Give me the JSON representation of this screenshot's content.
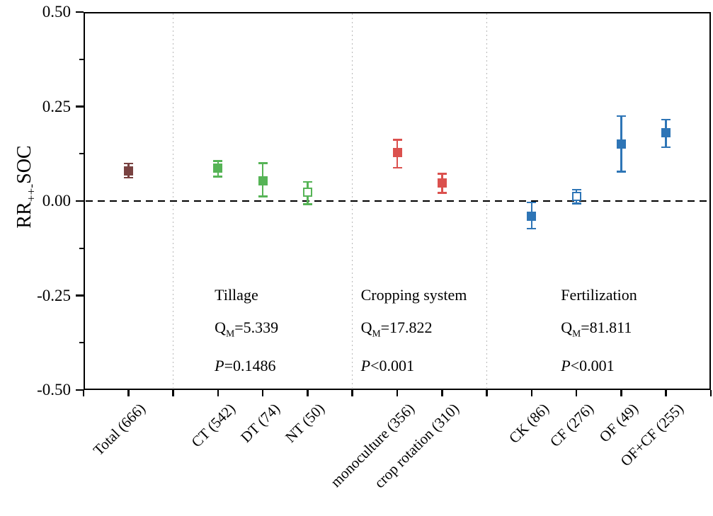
{
  "figure": {
    "background": "#ffffff"
  },
  "chart_data": {
    "type": "scatter",
    "variant": "point-errorbar-forest",
    "title": "",
    "xlabel": "",
    "ylabel": {
      "base": "RR",
      "sub": "++-",
      "suffix": "SOC"
    },
    "ylim": [
      -0.5,
      0.5
    ],
    "grid": "off",
    "legend": "none",
    "ymajor": [
      {
        "v": 0.5,
        "label": "0.50"
      },
      {
        "v": 0.25,
        "label": "0.25"
      },
      {
        "v": 0,
        "label": "0.00"
      },
      {
        "v": -0.25,
        "label": "-0.25"
      },
      {
        "v": -0.5,
        "label": "-0.50"
      }
    ],
    "yminor": [
      0.375,
      0.125,
      -0.125,
      -0.375
    ],
    "zero_line_value": 0,
    "x_slots": 14,
    "separator_slots": [
      2,
      6,
      9
    ],
    "points": [
      {
        "label": "Total (666)",
        "slot": 1,
        "value": 0.08,
        "ci_low": 0.062,
        "ci_high": 0.099,
        "color": "#794241",
        "filled": true
      },
      {
        "label": "CT (542)",
        "slot": 3,
        "value": 0.088,
        "ci_low": 0.065,
        "ci_high": 0.106,
        "color": "#56B456",
        "filled": true
      },
      {
        "label": "DT (74)",
        "slot": 4,
        "value": 0.054,
        "ci_low": 0.012,
        "ci_high": 0.1,
        "color": "#56B456",
        "filled": true
      },
      {
        "label": "NT (50)",
        "slot": 5,
        "value": 0.023,
        "ci_low": -0.008,
        "ci_high": 0.051,
        "color": "#56B456",
        "filled": false
      },
      {
        "label": "monoculture (356)",
        "slot": 7,
        "value": 0.128,
        "ci_low": 0.088,
        "ci_high": 0.162,
        "color": "#DB514E",
        "filled": true
      },
      {
        "label": "crop rotation (310)",
        "slot": 8,
        "value": 0.048,
        "ci_low": 0.022,
        "ci_high": 0.072,
        "color": "#DB514E",
        "filled": true
      },
      {
        "label": "CK (86)",
        "slot": 10,
        "value": -0.041,
        "ci_low": -0.073,
        "ci_high": -0.004,
        "color": "#2E75B6",
        "filled": true
      },
      {
        "label": "CF (276)",
        "slot": 11,
        "value": 0.013,
        "ci_low": -0.007,
        "ci_high": 0.03,
        "color": "#2E75B6",
        "filled": false
      },
      {
        "label": "OF (49)",
        "slot": 12,
        "value": 0.15,
        "ci_low": 0.078,
        "ci_high": 0.225,
        "color": "#2E75B6",
        "filled": true
      },
      {
        "label": "OF+CF (255)",
        "slot": 13,
        "value": 0.18,
        "ci_low": 0.142,
        "ci_high": 0.215,
        "color": "#2E75B6",
        "filled": true
      }
    ],
    "groups": [
      {
        "x_frac": 0.209,
        "title": "Tillage",
        "q_label": "Q",
        "q_sub": "M",
        "q_value": "=5.339",
        "p_label": "P",
        "p_value": "=0.1486"
      },
      {
        "x_frac": 0.442,
        "title": "Cropping system",
        "q_label": "Q",
        "q_sub": "M",
        "q_value": "=17.822",
        "p_label": "P",
        "p_value": "<0.001"
      },
      {
        "x_frac": 0.761,
        "title": "Fertilization",
        "q_label": "Q",
        "q_sub": "M",
        "q_value": "=81.811",
        "p_label": "P",
        "p_value": "<0.001"
      }
    ],
    "colors": {
      "total": "#794241",
      "tillage": "#56B456",
      "cropping_system": "#DB514E",
      "fertilization": "#2E75B6",
      "axis": "#000000",
      "separator": "#B8B8B8",
      "zero_line": "#000000"
    }
  }
}
